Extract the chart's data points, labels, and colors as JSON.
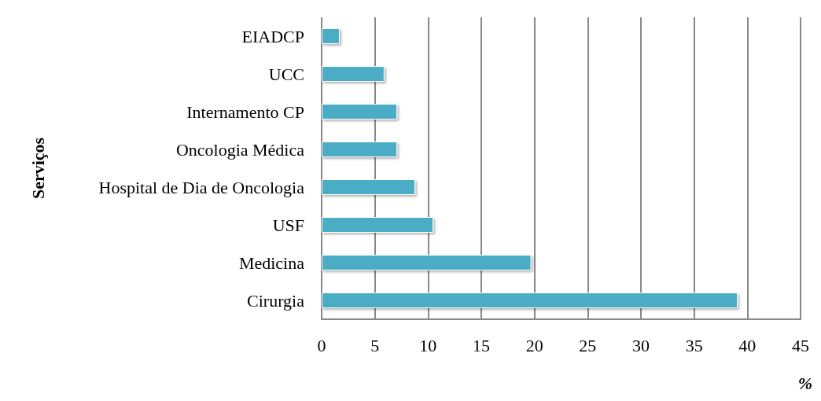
{
  "chart_data": {
    "type": "bar",
    "orientation": "horizontal",
    "xlabel": "%",
    "ylabel": "Serviços",
    "categories": [
      "EIADCP",
      "UCC",
      "Internamento CP",
      "Oncologia Médica",
      "Hospital de Dia de Oncologia",
      "USF",
      "Medicina",
      "Cirurgia"
    ],
    "values": [
      1.7,
      5.9,
      7.1,
      7.1,
      8.8,
      10.5,
      19.7,
      39.1
    ],
    "color": "#4bacc6",
    "xlim": [
      0,
      45
    ],
    "xticks": [
      0,
      5,
      10,
      15,
      20,
      25,
      30,
      35,
      40,
      45
    ],
    "grid": "x"
  }
}
